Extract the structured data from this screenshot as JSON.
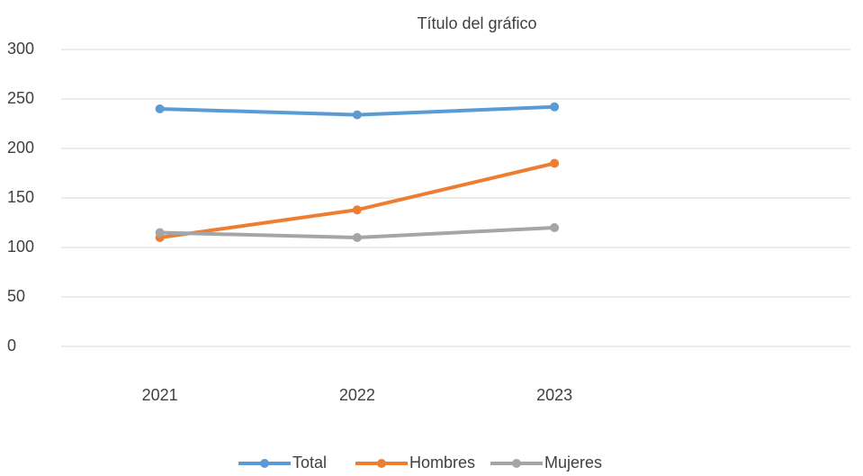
{
  "chart_data": {
    "type": "line",
    "title": "Título del gráfico",
    "categories": [
      "2021",
      "2022",
      "2023",
      null
    ],
    "series": [
      {
        "name": "Total",
        "color": "#5b9bd5",
        "values": [
          240,
          234,
          242,
          null
        ]
      },
      {
        "name": "Hombres",
        "color": "#ed7d31",
        "values": [
          110,
          138,
          185,
          null
        ]
      },
      {
        "name": "Mujeres",
        "color": "#a5a5a5",
        "values": [
          115,
          110,
          120,
          null
        ]
      }
    ],
    "ylim": [
      0,
      300
    ],
    "yticks": [
      0,
      50,
      100,
      150,
      200,
      250,
      300
    ],
    "grid": true,
    "legend": "bottom"
  }
}
